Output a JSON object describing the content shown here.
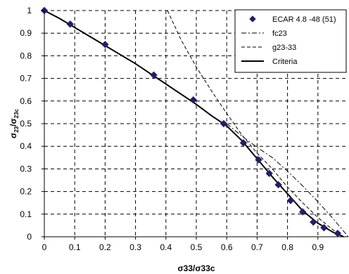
{
  "chart_data": {
    "type": "scatter",
    "xlabel": "σ33/σ33c",
    "ylabel": {
      "main": "σ",
      "sub1": "23",
      "mid": "/σ",
      "sub2": "23c"
    },
    "xlim": [
      0,
      1.0
    ],
    "ylim": [
      0,
      1.0
    ],
    "x_ticks": [
      0,
      0.1,
      0.2,
      0.3,
      0.4,
      0.5,
      0.6,
      0.7,
      0.8,
      0.9
    ],
    "x_tick_labels": [
      "0",
      "0.1",
      "0.2",
      "0.3",
      "0.4",
      "0.5",
      "0.6",
      "0.7",
      "0.8",
      "0.9"
    ],
    "y_ticks": [
      0,
      0.1,
      0.2,
      0.3,
      0.4,
      0.5,
      0.6,
      0.7,
      0.8,
      0.9,
      1
    ],
    "y_tick_labels": [
      "0",
      "0.1",
      "0.2",
      "0.3",
      "0.4",
      "0.5",
      "0.6",
      "0.7",
      "0.8",
      "0.9",
      "1"
    ],
    "grid": true,
    "legend_position": "top-right",
    "series": [
      {
        "name": "ECAR 4.8 -48 (51)",
        "kind": "markers",
        "color": "#1f1f6b",
        "x": [
          0.0,
          0.085,
          0.2,
          0.36,
          0.49,
          0.59,
          0.655,
          0.705,
          0.74,
          0.77,
          0.81,
          0.85,
          0.885,
          0.92,
          0.965
        ],
        "y": [
          1.0,
          0.94,
          0.85,
          0.715,
          0.605,
          0.5,
          0.415,
          0.34,
          0.28,
          0.23,
          0.16,
          0.11,
          0.065,
          0.04,
          0.015
        ]
      },
      {
        "name": "fc23",
        "kind": "dash-dot",
        "color": "#000000",
        "x": [
          0.6,
          0.65,
          0.7,
          0.75,
          0.8,
          0.85,
          0.9,
          0.95,
          1.0
        ],
        "y": [
          0.5,
          0.445,
          0.395,
          0.35,
          0.29,
          0.225,
          0.155,
          0.08,
          0.0
        ]
      },
      {
        "name": "g23-33",
        "kind": "dashed",
        "color": "#000000",
        "x": [
          0.405,
          0.45,
          0.5,
          0.55,
          0.6,
          0.65,
          0.7,
          0.75,
          0.8,
          0.85,
          0.9,
          0.95,
          0.985
        ],
        "y": [
          1.0,
          0.87,
          0.75,
          0.645,
          0.545,
          0.45,
          0.37,
          0.3,
          0.22,
          0.15,
          0.085,
          0.03,
          0.0
        ]
      },
      {
        "name": "Criteria",
        "kind": "solid",
        "color": "#000000",
        "x": [
          0.0,
          0.05,
          0.1,
          0.15,
          0.2,
          0.25,
          0.3,
          0.35,
          0.4,
          0.45,
          0.5,
          0.55,
          0.6,
          0.65,
          0.7,
          0.75,
          0.8,
          0.85,
          0.9,
          0.95,
          0.985
        ],
        "y": [
          1.0,
          0.965,
          0.925,
          0.885,
          0.845,
          0.805,
          0.765,
          0.72,
          0.675,
          0.63,
          0.585,
          0.535,
          0.49,
          0.425,
          0.345,
          0.265,
          0.19,
          0.115,
          0.06,
          0.02,
          0.0
        ]
      }
    ]
  }
}
